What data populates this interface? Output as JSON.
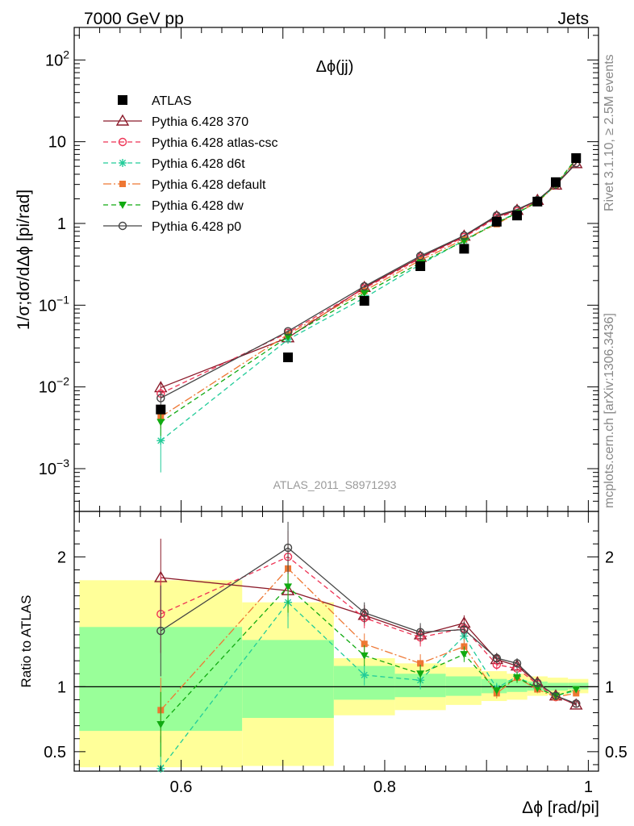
{
  "header": {
    "left": "7000 GeV pp",
    "right": "Jets"
  },
  "side_labels": {
    "rivet": "Rivet 3.1.10, ≥ 2.5M events",
    "mcplots": "mcplots.cern.ch [arXiv:1306.3436]"
  },
  "watermark": "ATLAS_2011_S8971293",
  "colors": {
    "data": "#000000",
    "p370": "#8b1a2a",
    "atlascsc": "#ee3355",
    "d6t": "#22cc99",
    "default": "#ee7733",
    "dw": "#11aa11",
    "p0": "#444444",
    "band_outer": "#ffff99",
    "band_inner": "#99ff99"
  },
  "chart_data": [
    {
      "type": "scatter",
      "title": "Δϕ(jj)",
      "ylabel": "1/σ;dσ/dΔϕ [pi/rad]",
      "ylog": true,
      "ylim": [
        0.0003,
        250
      ],
      "xlim": [
        0.495,
        1.01
      ],
      "y_ticks": [
        {
          "v": 100,
          "base": "10",
          "exp": "2"
        },
        {
          "v": 10,
          "base": "10",
          "exp": ""
        },
        {
          "v": 1,
          "base": "1",
          "exp": ""
        },
        {
          "v": 0.1,
          "base": "10",
          "exp": "−1"
        },
        {
          "v": 0.01,
          "base": "10",
          "exp": "−2"
        },
        {
          "v": 0.001,
          "base": "10",
          "exp": "−3"
        }
      ],
      "legend_position": "top-left",
      "x": [
        0.58,
        0.705,
        0.78,
        0.835,
        0.878,
        0.91,
        0.93,
        0.95,
        0.968,
        0.988
      ],
      "series": [
        {
          "name": "ATLAS",
          "key": "data",
          "marker": "square",
          "values": [
            0.0053,
            0.023,
            0.113,
            0.3,
            0.49,
            1.05,
            1.25,
            1.85,
            3.2,
            6.3
          ],
          "errors": [
            0.0005,
            0.001,
            0.004,
            0.008,
            0.012,
            0.03,
            0.03,
            0.05,
            0.08,
            0.15
          ]
        },
        {
          "name": "Pythia 6.428 370",
          "key": "p370",
          "marker": "triangle-open",
          "dash": "",
          "values": [
            0.0098,
            0.04,
            0.165,
            0.385,
            0.7,
            1.21,
            1.45,
            1.92,
            2.95,
            5.4
          ],
          "errors": [
            0.0018,
            0.003,
            0.006,
            0.012,
            0.02,
            0.03,
            0.03,
            0.04,
            0.06,
            0.1
          ]
        },
        {
          "name": "Pythia 6.428 atlas-csc",
          "key": "atlascsc",
          "marker": "circle-open",
          "dash": "6,4",
          "values": [
            0.0083,
            0.046,
            0.16,
            0.375,
            0.68,
            1.17,
            1.42,
            1.88,
            2.93,
            5.5
          ],
          "errors": [
            0.0015,
            0.003,
            0.006,
            0.012,
            0.02,
            0.03,
            0.03,
            0.04,
            0.06,
            0.1
          ]
        },
        {
          "name": "Pythia 6.428 d6t",
          "key": "d6t",
          "marker": "star",
          "dash": "6,4",
          "values": [
            0.0022,
            0.038,
            0.123,
            0.315,
            0.62,
            1.03,
            1.35,
            1.83,
            2.94,
            6.1
          ],
          "errors": [
            0.0013,
            0.004,
            0.006,
            0.012,
            0.02,
            0.03,
            0.03,
            0.04,
            0.06,
            0.1
          ]
        },
        {
          "name": "Pythia 6.428 default",
          "key": "default",
          "marker": "square-filled",
          "dash": "10,3,2,3",
          "values": [
            0.0043,
            0.044,
            0.15,
            0.355,
            0.64,
            0.98,
            1.35,
            1.82,
            2.93,
            6.0
          ],
          "errors": [
            0.0012,
            0.003,
            0.006,
            0.012,
            0.02,
            0.03,
            0.03,
            0.04,
            0.06,
            0.1
          ]
        },
        {
          "name": "Pythia 6.428 dw",
          "key": "dw",
          "marker": "triangle-down",
          "dash": "6,4",
          "values": [
            0.0037,
            0.041,
            0.14,
            0.33,
            0.61,
            1.02,
            1.34,
            1.84,
            2.98,
            6.2
          ],
          "errors": [
            0.0012,
            0.003,
            0.006,
            0.012,
            0.02,
            0.03,
            0.03,
            0.04,
            0.06,
            0.1
          ]
        },
        {
          "name": "Pythia 6.428 p0",
          "key": "p0",
          "marker": "circle-open",
          "dash": "",
          "values": [
            0.0073,
            0.048,
            0.17,
            0.4,
            0.71,
            1.25,
            1.48,
            1.93,
            2.97,
            5.45
          ],
          "errors": [
            0.0015,
            0.003,
            0.006,
            0.012,
            0.02,
            0.03,
            0.03,
            0.04,
            0.06,
            0.1
          ]
        }
      ]
    },
    {
      "type": "scatter",
      "xlabel": "Δϕ [rad/pi]",
      "ylabel": "Ratio to ATLAS",
      "xlim": [
        0.495,
        1.01
      ],
      "ylim": [
        0.35,
        2.35
      ],
      "x_ticks": [
        0.6,
        0.8,
        1
      ],
      "x_tick_labels": [
        "0.6",
        "0.8",
        "1"
      ],
      "y_ticks": [
        0.5,
        1,
        2
      ],
      "y_tick_labels": [
        "0.5",
        "1",
        "2"
      ],
      "x": [
        0.58,
        0.705,
        0.78,
        0.835,
        0.878,
        0.91,
        0.93,
        0.95,
        0.968,
        0.988
      ],
      "bands": {
        "edges": [
          0.5,
          0.66,
          0.75,
          0.81,
          0.86,
          0.895,
          0.92,
          0.94,
          0.96,
          0.98,
          1.0
        ],
        "outer_low": [
          0.38,
          0.39,
          0.78,
          0.82,
          0.86,
          0.89,
          0.9,
          0.93,
          0.94,
          0.95
        ],
        "outer_high": [
          1.82,
          1.65,
          1.22,
          1.18,
          1.15,
          1.12,
          1.1,
          1.08,
          1.07,
          1.06
        ],
        "inner_low": [
          0.66,
          0.76,
          0.9,
          0.92,
          0.93,
          0.95,
          0.96,
          0.97,
          0.97,
          0.98
        ],
        "inner_high": [
          1.46,
          1.36,
          1.16,
          1.1,
          1.08,
          1.06,
          1.05,
          1.04,
          1.03,
          1.03
        ]
      },
      "series": [
        {
          "name": "Pythia 6.428 370",
          "key": "p370",
          "values": [
            1.84,
            1.74,
            1.55,
            1.4,
            1.49,
            1.21,
            1.16,
            1.03,
            0.93,
            0.86
          ],
          "errors": [
            0.3,
            0.2,
            0.08,
            0.07,
            0.06,
            0.04,
            0.04,
            0.03,
            0.03,
            0.02
          ]
        },
        {
          "name": "Pythia 6.428 atlas-csc",
          "key": "atlascsc",
          "values": [
            1.56,
            2.0,
            1.53,
            1.38,
            1.45,
            1.17,
            1.14,
            1.02,
            0.92,
            0.87
          ],
          "errors": [
            0.3,
            0.2,
            0.08,
            0.07,
            0.06,
            0.04,
            0.04,
            0.03,
            0.03,
            0.02
          ]
        },
        {
          "name": "Pythia 6.428 d6t",
          "key": "d6t",
          "values": [
            0.37,
            1.65,
            1.09,
            1.05,
            1.39,
            0.99,
            1.08,
            0.99,
            0.93,
            0.97
          ],
          "errors": [
            0.25,
            0.2,
            0.08,
            0.07,
            0.06,
            0.04,
            0.04,
            0.03,
            0.03,
            0.02
          ]
        },
        {
          "name": "Pythia 6.428 default",
          "key": "default",
          "values": [
            0.82,
            1.91,
            1.33,
            1.18,
            1.31,
            0.95,
            1.07,
            0.98,
            0.92,
            0.95
          ],
          "errors": [
            0.25,
            0.2,
            0.08,
            0.07,
            0.06,
            0.04,
            0.04,
            0.03,
            0.03,
            0.02
          ]
        },
        {
          "name": "Pythia 6.428 dw",
          "key": "dw",
          "values": [
            0.71,
            1.77,
            1.24,
            1.1,
            1.25,
            0.97,
            1.07,
            0.99,
            0.93,
            0.98
          ],
          "errors": [
            0.25,
            0.2,
            0.08,
            0.07,
            0.06,
            0.04,
            0.04,
            0.03,
            0.03,
            0.02
          ]
        },
        {
          "name": "Pythia 6.428 p0",
          "key": "p0",
          "values": [
            1.43,
            2.07,
            1.57,
            1.42,
            1.44,
            1.22,
            1.18,
            1.03,
            0.93,
            0.87
          ],
          "errors": [
            0.35,
            0.2,
            0.08,
            0.07,
            0.06,
            0.04,
            0.04,
            0.03,
            0.03,
            0.02
          ]
        }
      ]
    }
  ]
}
